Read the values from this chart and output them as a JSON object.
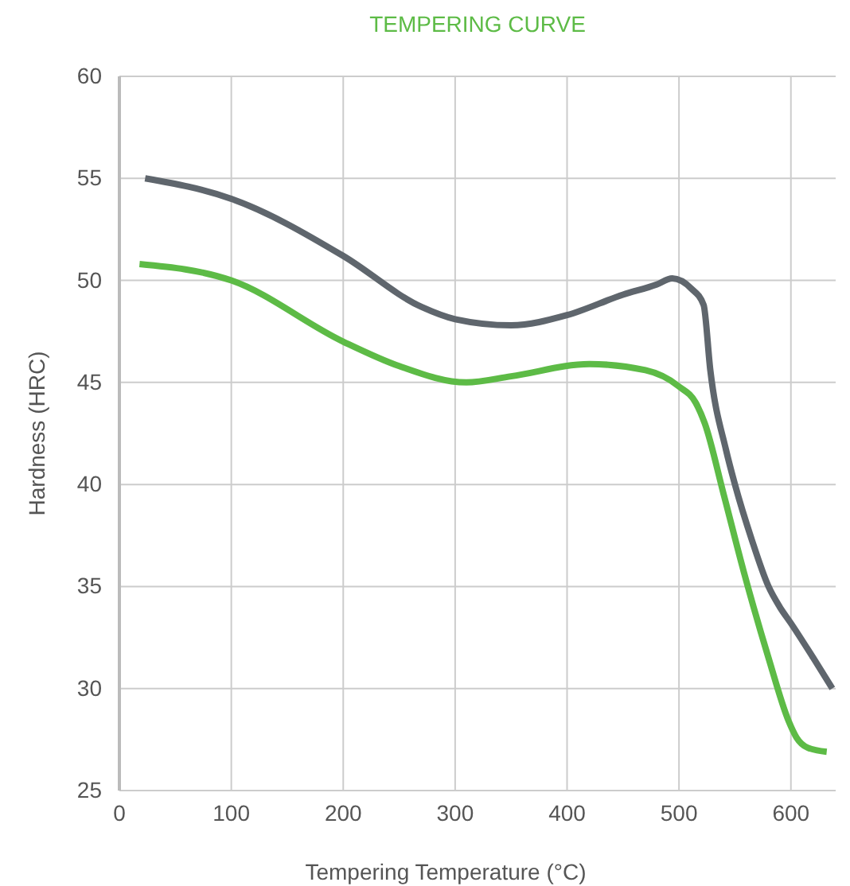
{
  "chart_data": {
    "type": "line",
    "title": "TEMPERING CURVE",
    "xlabel": "Tempering Temperature (°C)",
    "ylabel": "Hardness (HRC)",
    "xlim": [
      0,
      640
    ],
    "ylim": [
      25,
      60
    ],
    "xticks": [
      0,
      100,
      200,
      300,
      400,
      500,
      600
    ],
    "yticks": [
      25,
      30,
      35,
      40,
      45,
      50,
      55,
      60
    ],
    "grid": true,
    "line_style": "solid",
    "marker": "none",
    "series": [
      {
        "color": "#5f666d",
        "x": [
          23,
          100,
          200,
          270,
          300,
          350,
          400,
          450,
          480,
          494,
          511,
          522,
          528,
          542,
          550,
          565,
          580,
          590,
          600,
          620,
          637
        ],
        "values": [
          55,
          54,
          51.2,
          48.7,
          48.1,
          47.8,
          48.3,
          49.3,
          49.8,
          50.1,
          49.6,
          48.8,
          45.6,
          41.7,
          40,
          37.3,
          35,
          34,
          33.2,
          31.5,
          30
        ]
      },
      {
        "color": "#5dbb46",
        "x": [
          18,
          100,
          200,
          250,
          310,
          350,
          420,
          470,
          500,
          515,
          523,
          540,
          558,
          580,
          598,
          605,
          615,
          632
        ],
        "values": [
          50.8,
          50,
          47,
          45.8,
          45,
          45.3,
          45.9,
          45.6,
          44.8,
          44,
          43,
          39.5,
          35.7,
          31.5,
          28.4,
          27.6,
          27.1,
          26.9
        ]
      }
    ]
  }
}
